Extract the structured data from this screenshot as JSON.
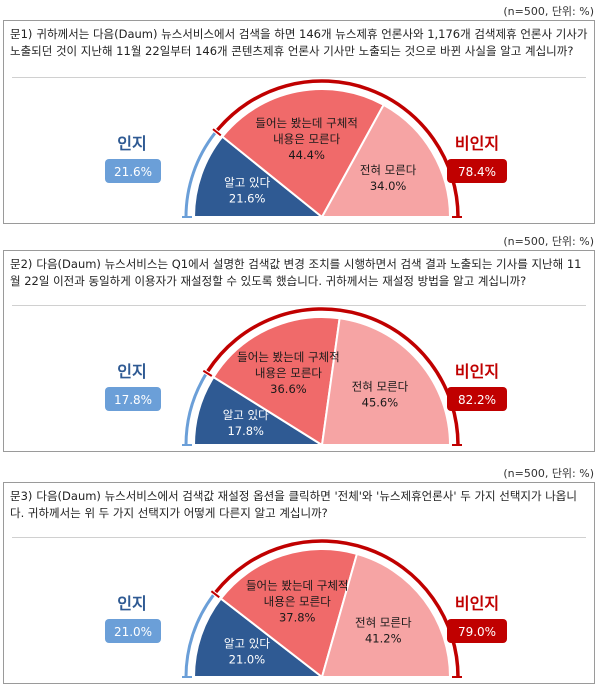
{
  "colors": {
    "aware": "#2f5a93",
    "aware_light": "#6b9fd8",
    "specific": "#f06a6a",
    "none": "#f6a4a4",
    "unaware_dark": "#c00000",
    "badge_blue": "#6b9fd8"
  },
  "questions": [
    {
      "n_label": "(n=500, 단위: %)",
      "qnum": "문1)",
      "text": "귀하께서는 다음(Daum) 뉴스서비스에서 검색을 하면 146개 뉴스제휴 언론사와 1,176개 검색제휴 언론사 기사가 노출되던 것이 지난해 11월 22일부터 146개 콘텐츠제휴 언론사 기사만 노출되는 것으로 바뀐 사실을 알고 계십니까?",
      "aware_label": "인지",
      "aware_value": "21.6%",
      "unaware_label": "비인지",
      "unaware_value": "78.4%",
      "segments": [
        {
          "label_lines": [
            "알고 있다",
            "21.6%"
          ],
          "value": 21.6
        },
        {
          "label_lines": [
            "들어는 봤는데 구체적",
            "내용은 모른다",
            "44.4%"
          ],
          "value": 44.4
        },
        {
          "label_lines": [
            "전혀 모른다",
            "34.0%"
          ],
          "value": 34.0
        }
      ]
    },
    {
      "n_label": "(n=500, 단위: %)",
      "qnum": "문2)",
      "text": "다음(Daum) 뉴스서비스는 Q1에서 설명한 검색값 변경 조치를 시행하면서 검색 결과 노출되는 기사를 지난해 11월 22일 이전과 동일하게 이용자가 재설정할 수 있도록 했습니다. 귀하께서는 재설정 방법을 알고 계십니까?",
      "aware_label": "인지",
      "aware_value": "17.8%",
      "unaware_label": "비인지",
      "unaware_value": "82.2%",
      "segments": [
        {
          "label_lines": [
            "알고 있다",
            "17.8%"
          ],
          "value": 17.8
        },
        {
          "label_lines": [
            "들어는 봤는데 구체적",
            "내용은 모른다",
            "36.6%"
          ],
          "value": 36.6
        },
        {
          "label_lines": [
            "전혀 모른다",
            "45.6%"
          ],
          "value": 45.6
        }
      ]
    },
    {
      "n_label": "(n=500, 단위: %)",
      "qnum": "문3)",
      "text": "다음(Daum) 뉴스서비스에서 검색값 재설정 옵션을 클릭하면 '전체'와 '뉴스제휴언론사' 두 가지 선택지가 나옵니다. 귀하께서는 위 두 가지 선택지가 어떻게 다른지 알고 계십니까?",
      "aware_label": "인지",
      "aware_value": "21.0%",
      "unaware_label": "비인지",
      "unaware_value": "79.0%",
      "segments": [
        {
          "label_lines": [
            "알고 있다",
            "21.0%"
          ],
          "value": 21.0
        },
        {
          "label_lines": [
            "들어는 봤는데 구체적",
            "내용은 모른다",
            "37.8%"
          ],
          "value": 37.8
        },
        {
          "label_lines": [
            "전혀 모른다",
            "41.2%"
          ],
          "value": 41.2
        }
      ]
    }
  ],
  "chart_data": [
    {
      "type": "pie",
      "categories": [
        "알고 있다",
        "들어는 봤는데 구체적 내용은 모른다",
        "전혀 모른다"
      ],
      "values": [
        21.6,
        44.4,
        34.0
      ],
      "title": "",
      "groups": [
        {
          "name": "인지",
          "value": 21.6
        },
        {
          "name": "비인지",
          "value": 78.4
        }
      ]
    },
    {
      "type": "pie",
      "categories": [
        "알고 있다",
        "들어는 봤는데 구체적 내용은 모른다",
        "전혀 모른다"
      ],
      "values": [
        17.8,
        36.6,
        45.6
      ],
      "title": "",
      "groups": [
        {
          "name": "인지",
          "value": 17.8
        },
        {
          "name": "비인지",
          "value": 82.2
        }
      ]
    },
    {
      "type": "pie",
      "categories": [
        "알고 있다",
        "들어는 봤는데 구체적 내용은 모른다",
        "전혀 모른다"
      ],
      "values": [
        21.0,
        37.8,
        41.2
      ],
      "title": "",
      "groups": [
        {
          "name": "인지",
          "value": 21.0
        },
        {
          "name": "비인지",
          "value": 79.0
        }
      ]
    }
  ]
}
